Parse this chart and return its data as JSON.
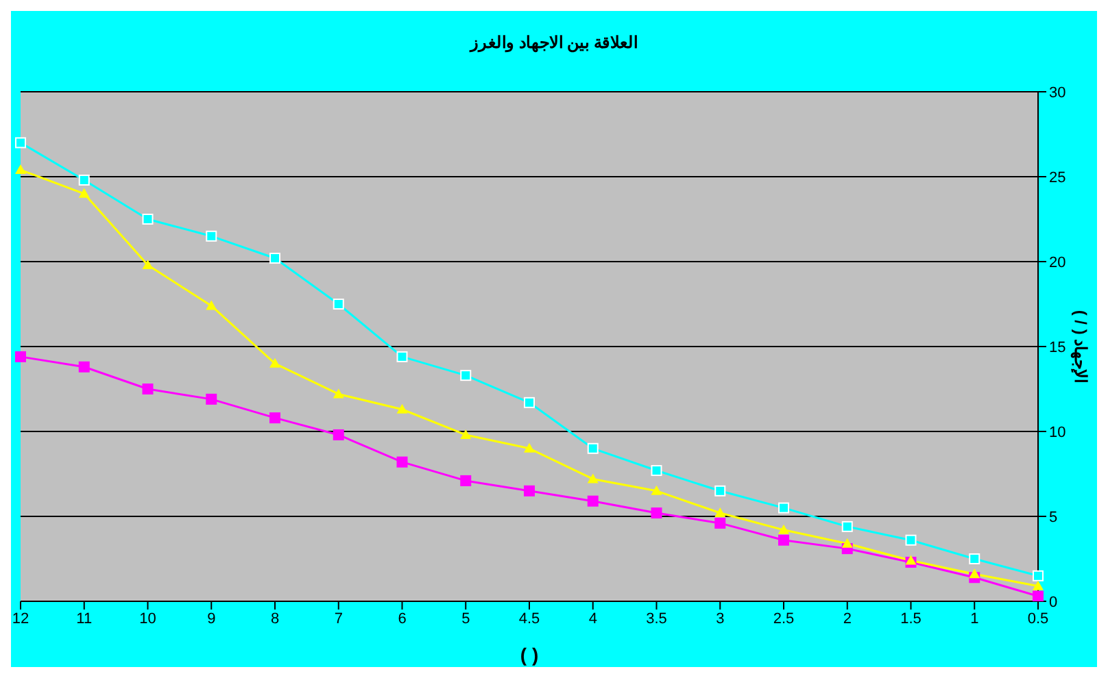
{
  "chart_data": {
    "type": "line",
    "title": "العلاقة بين الاجهاد والغرز",
    "xlabel": "(     )",
    "ylabel": "الإجهاد (     /     )",
    "categories": [
      "12",
      "11",
      "10",
      "9",
      "8",
      "7",
      "6",
      "5",
      "4.5",
      "4",
      "3.5",
      "3",
      "2.5",
      "2",
      "1.5",
      "1",
      "0.5"
    ],
    "series": [
      {
        "color": "#00ffff",
        "marker": "square",
        "values": [
          27.0,
          24.8,
          22.5,
          21.5,
          20.2,
          17.5,
          14.4,
          13.3,
          11.7,
          9.0,
          7.7,
          6.5,
          5.5,
          4.4,
          3.6,
          2.5,
          1.5
        ]
      },
      {
        "color": "#ffff00",
        "marker": "triangle",
        "values": [
          25.4,
          24.0,
          19.8,
          17.4,
          14.0,
          12.2,
          11.3,
          9.8,
          9.0,
          7.2,
          6.5,
          5.2,
          4.2,
          3.4,
          2.4,
          1.6,
          0.9
        ]
      },
      {
        "color": "#ff00ff",
        "marker": "square",
        "values": [
          14.4,
          13.8,
          12.5,
          11.9,
          10.8,
          9.8,
          8.2,
          7.1,
          6.5,
          5.9,
          5.2,
          4.6,
          3.6,
          3.1,
          2.3,
          1.4,
          0.3
        ]
      }
    ],
    "ylim": [
      0,
      30
    ],
    "yticks": [
      0,
      5,
      10,
      15,
      20,
      25,
      30
    ],
    "grid": "y",
    "legend": false
  }
}
